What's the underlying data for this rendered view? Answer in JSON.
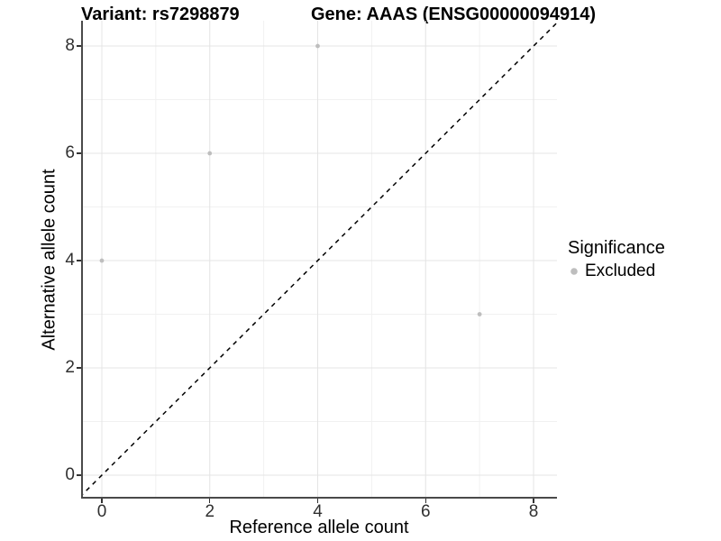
{
  "titles": {
    "left": "Variant: rs7298879",
    "right": "Gene: AAAS (ENSG00000094914)"
  },
  "chart_data": {
    "type": "scatter",
    "title_left": "Variant: rs7298879",
    "title_right": "Gene: AAAS (ENSG00000094914)",
    "xlabel": "Reference allele count",
    "ylabel": "Alternative allele count",
    "series": [
      {
        "name": "Excluded",
        "color": "#bebebe",
        "points": [
          [
            0,
            4
          ],
          [
            2,
            6
          ],
          [
            4,
            8
          ],
          [
            7,
            3
          ]
        ]
      }
    ],
    "x_ticks": [
      0,
      2,
      4,
      6,
      8
    ],
    "y_ticks": [
      0,
      2,
      4,
      6,
      8
    ],
    "x_minor_ticks": [
      1,
      3,
      5,
      7
    ],
    "y_minor_ticks": [
      1,
      3,
      5,
      7
    ],
    "xlim": [
      -0.384,
      8.434
    ],
    "ylim": [
      -0.437,
      8.471
    ],
    "grid": true,
    "identity_line": {
      "slope": 1,
      "intercept": 0,
      "style": "dashed",
      "color": "#000000"
    },
    "legend": {
      "position": "right",
      "title": "Significance",
      "entries": [
        {
          "label": "Excluded",
          "color": "#bebebe"
        }
      ]
    },
    "colors": {
      "background": "#ffffff",
      "grid_major": "#e4e4e4",
      "grid_minor": "#f1f1f1",
      "axis_line": "#4a4a4a",
      "tick_mark": "#333333",
      "point": "#bebebe"
    }
  }
}
